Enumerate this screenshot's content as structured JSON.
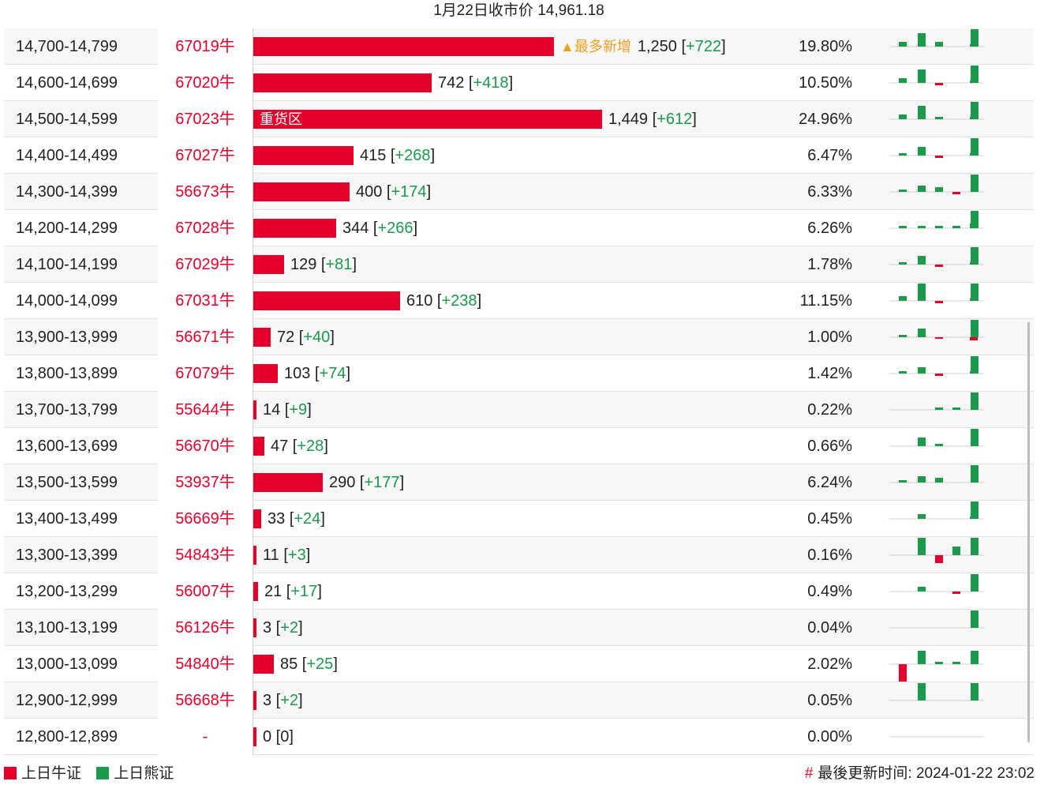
{
  "header": {
    "title": "1月22日收市价 14,961.18"
  },
  "colors": {
    "bull": "#e4002b",
    "bear": "#1a9a4a",
    "highlight": "#f0a020"
  },
  "chart_data": {
    "type": "bar",
    "title": "1月22日收市价 14,961.18",
    "close_price": 14961.18,
    "rows": [
      {
        "range": "14,700-14,799",
        "code": "67019牛",
        "value": 1250,
        "value_text": "1,250",
        "change_text": "+722",
        "pct": "19.80%",
        "tag": "▲最多新增",
        "spark": [
          1,
          3,
          1,
          0,
          0.5,
          4
        ]
      },
      {
        "range": "14,600-14,699",
        "code": "67020牛",
        "value": 742,
        "value_text": "742",
        "change_text": "+418",
        "pct": "10.50%",
        "spark": [
          1,
          3,
          -0.5,
          0,
          0.5,
          4
        ]
      },
      {
        "range": "14,500-14,599",
        "code": "67023牛",
        "value": 1449,
        "value_text": "1,449",
        "change_text": "+612",
        "pct": "24.96%",
        "inside_label": "重货区",
        "spark": [
          1,
          3,
          0.5,
          0,
          0.5,
          4
        ]
      },
      {
        "range": "14,400-14,499",
        "code": "67027牛",
        "value": 415,
        "value_text": "415",
        "change_text": "+268",
        "pct": "6.47%",
        "spark": [
          0.5,
          2,
          -0.5,
          0,
          0.5,
          4
        ]
      },
      {
        "range": "14,300-14,399",
        "code": "56673牛",
        "value": 400,
        "value_text": "400",
        "change_text": "+174",
        "pct": "6.33%",
        "spark": [
          0.5,
          1.5,
          1,
          -0.5,
          0,
          4
        ]
      },
      {
        "range": "14,200-14,299",
        "code": "67028牛",
        "value": 344,
        "value_text": "344",
        "change_text": "+266",
        "pct": "6.26%",
        "spark": [
          0.5,
          0.5,
          0.5,
          0.5,
          1,
          4
        ]
      },
      {
        "range": "14,100-14,199",
        "code": "67029牛",
        "value": 129,
        "value_text": "129",
        "change_text": "+81",
        "pct": "1.78%",
        "spark": [
          0.5,
          2,
          -0.5,
          0,
          0.5,
          4
        ]
      },
      {
        "range": "14,000-14,099",
        "code": "67031牛",
        "value": 610,
        "value_text": "610",
        "change_text": "+238",
        "pct": "11.15%",
        "spark": [
          1,
          4,
          -0.5,
          0,
          0.5,
          4
        ]
      },
      {
        "range": "13,900-13,999",
        "code": "56671牛",
        "value": 72,
        "value_text": "72",
        "change_text": "+40",
        "pct": "1.00%",
        "spark": [
          0.5,
          2,
          -0.3,
          0,
          -0.7,
          4
        ]
      },
      {
        "range": "13,800-13,899",
        "code": "67079牛",
        "value": 103,
        "value_text": "103",
        "change_text": "+74",
        "pct": "1.42%",
        "spark": [
          0.5,
          1.5,
          -0.5,
          0,
          0.5,
          4
        ]
      },
      {
        "range": "13,700-13,799",
        "code": "55644牛",
        "value": 14,
        "value_text": "14",
        "change_text": "+9",
        "pct": "0.22%",
        "spark": [
          0,
          0,
          0.5,
          0.5,
          0,
          4
        ]
      },
      {
        "range": "13,600-13,699",
        "code": "56670牛",
        "value": 47,
        "value_text": "47",
        "change_text": "+28",
        "pct": "0.66%",
        "spark": [
          0,
          2,
          0.5,
          0,
          0,
          4
        ]
      },
      {
        "range": "13,500-13,599",
        "code": "53937牛",
        "value": 290,
        "value_text": "290",
        "change_text": "+177",
        "pct": "6.24%",
        "spark": [
          0.5,
          1.5,
          1,
          0,
          0,
          4
        ]
      },
      {
        "range": "13,400-13,499",
        "code": "56669牛",
        "value": 33,
        "value_text": "33",
        "change_text": "+24",
        "pct": "0.45%",
        "spark": [
          0,
          1,
          0,
          0,
          0.5,
          4
        ]
      },
      {
        "range": "13,300-13,399",
        "code": "54843牛",
        "value": 11,
        "value_text": "11",
        "change_text": "+3",
        "pct": "0.16%",
        "spark": [
          0,
          4,
          -1.8,
          2,
          0,
          4
        ]
      },
      {
        "range": "13,200-13,299",
        "code": "56007牛",
        "value": 21,
        "value_text": "21",
        "change_text": "+17",
        "pct": "0.49%",
        "spark": [
          0,
          1,
          0,
          -0.5,
          0,
          4
        ]
      },
      {
        "range": "13,100-13,199",
        "code": "56126牛",
        "value": 3,
        "value_text": "3",
        "change_text": "+2",
        "pct": "0.04%",
        "spark": [
          0,
          0,
          0,
          0,
          0,
          4
        ]
      },
      {
        "range": "13,000-13,099",
        "code": "54840牛",
        "value": 85,
        "value_text": "85",
        "change_text": "+25",
        "pct": "2.02%",
        "spark": [
          -4,
          3,
          0.5,
          0.5,
          0,
          3
        ]
      },
      {
        "range": "12,900-12,999",
        "code": "56668牛",
        "value": 3,
        "value_text": "3",
        "change_text": "+2",
        "pct": "0.05%",
        "spark": [
          0,
          4,
          0,
          0,
          0,
          4
        ]
      },
      {
        "range": "12,800-12,899",
        "code": "-",
        "value": 0,
        "value_text": "0",
        "change_text": "0",
        "pct": "0.00%",
        "spark": [
          0,
          0,
          0,
          0,
          0,
          0
        ]
      }
    ]
  },
  "legend": {
    "bull": "上日牛证",
    "bear": "上日熊证"
  },
  "footer": {
    "hash": "#",
    "updated": "最後更新时间: 2024-01-22 23:02"
  }
}
